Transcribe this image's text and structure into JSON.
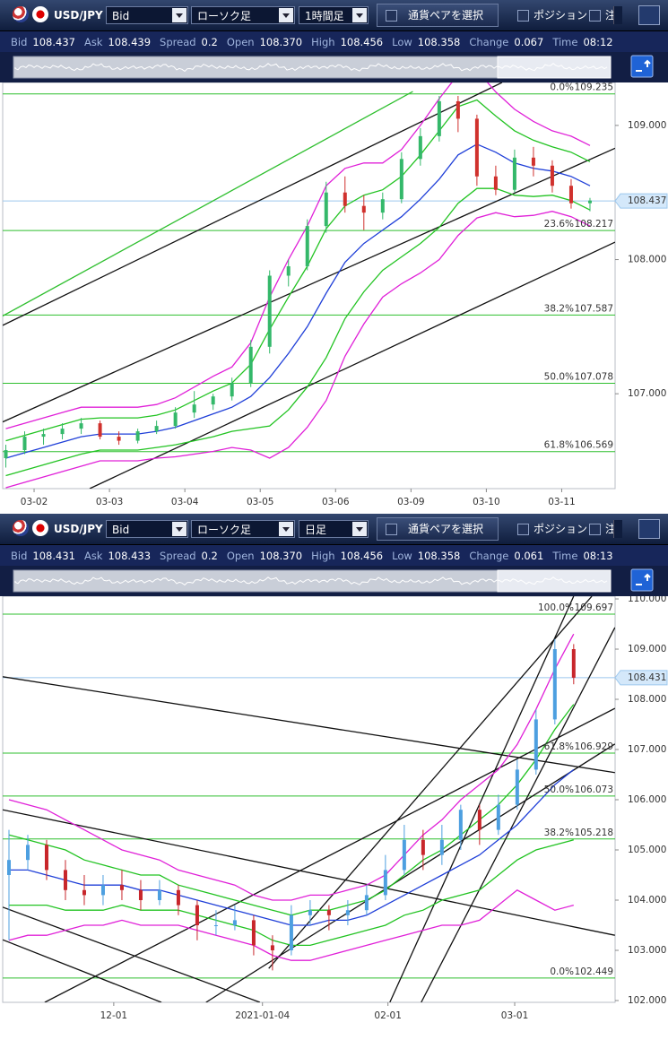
{
  "panels": [
    {
      "toolbar": {
        "pair": "USD/JPY",
        "price_type": "Bid",
        "chart_type": "ローソク足",
        "timeframe": "1時間足",
        "select_pair": "通貨ペアを選択",
        "position": "ポジション",
        "order": "注"
      },
      "quote": [
        {
          "label": "Bid",
          "value": "108.437"
        },
        {
          "label": "Ask",
          "value": "108.439"
        },
        {
          "label": "Spread",
          "value": "0.2"
        },
        {
          "label": "Open",
          "value": "108.370"
        },
        {
          "label": "High",
          "value": "108.456"
        },
        {
          "label": "Low",
          "value": "108.358"
        },
        {
          "label": "Change",
          "value": "0.067"
        },
        {
          "label": "Time",
          "value": "08:12"
        }
      ]
    },
    {
      "toolbar": {
        "pair": "USD/JPY",
        "price_type": "Bid",
        "chart_type": "ローソク足",
        "timeframe": "日足",
        "select_pair": "通貨ペアを選択",
        "position": "ポジション",
        "order": "注"
      },
      "quote": [
        {
          "label": "Bid",
          "value": "108.431"
        },
        {
          "label": "Ask",
          "value": "108.433"
        },
        {
          "label": "Spread",
          "value": "0.2"
        },
        {
          "label": "Open",
          "value": "108.370"
        },
        {
          "label": "High",
          "value": "108.456"
        },
        {
          "label": "Low",
          "value": "108.358"
        },
        {
          "label": "Change",
          "value": "0.061"
        },
        {
          "label": "Time",
          "value": "08:13"
        }
      ]
    }
  ],
  "chart_data": [
    {
      "type": "candlestick",
      "up_color": "#34b86a",
      "down_color": "#d0312d",
      "x": [
        1,
        7,
        13,
        19,
        25,
        31,
        37,
        43,
        49,
        55,
        61,
        67,
        73,
        79,
        85,
        91,
        97,
        103,
        109,
        115,
        121,
        127,
        133,
        139,
        145,
        151,
        157,
        163,
        169,
        175,
        181,
        187
      ],
      "open": [
        106.52,
        106.58,
        106.68,
        106.7,
        106.74,
        106.78,
        106.68,
        106.65,
        106.72,
        106.76,
        106.86,
        106.92,
        106.98,
        107.08,
        107.35,
        107.88,
        107.95,
        108.25,
        108.5,
        108.4,
        108.35,
        108.45,
        108.75,
        108.92,
        109.18,
        109.05,
        108.62,
        108.52,
        108.76,
        108.7,
        108.55,
        108.42
      ],
      "high": [
        106.62,
        106.72,
        106.74,
        106.78,
        106.82,
        106.8,
        106.72,
        106.74,
        106.8,
        106.9,
        107.02,
        107.0,
        107.12,
        107.4,
        107.92,
        108.0,
        108.3,
        108.58,
        108.62,
        108.48,
        108.5,
        108.8,
        108.98,
        109.22,
        109.22,
        109.08,
        108.7,
        108.82,
        108.84,
        108.74,
        108.6,
        108.46
      ],
      "low": [
        106.45,
        106.55,
        106.62,
        106.66,
        106.7,
        106.66,
        106.62,
        106.63,
        106.7,
        106.74,
        106.82,
        106.88,
        106.95,
        107.05,
        107.3,
        107.8,
        107.92,
        108.2,
        108.35,
        108.22,
        108.3,
        108.42,
        108.7,
        108.88,
        108.95,
        108.55,
        108.48,
        108.5,
        108.62,
        108.5,
        108.38,
        108.36
      ],
      "close": [
        106.58,
        106.68,
        106.7,
        106.74,
        106.78,
        106.68,
        106.65,
        106.72,
        106.76,
        106.86,
        106.92,
        106.98,
        107.08,
        107.35,
        107.88,
        107.95,
        108.25,
        108.5,
        108.4,
        108.35,
        108.45,
        108.75,
        108.92,
        109.18,
        109.05,
        108.62,
        108.52,
        108.76,
        108.7,
        108.55,
        108.42,
        108.44
      ],
      "series": [
        {
          "color": "#1f3fd8",
          "values": [
            106.52,
            106.56,
            106.6,
            106.64,
            106.68,
            106.7,
            106.7,
            106.7,
            106.72,
            106.75,
            106.8,
            106.85,
            106.9,
            106.98,
            107.12,
            107.3,
            107.5,
            107.75,
            107.98,
            108.12,
            108.22,
            108.32,
            108.45,
            108.6,
            108.78,
            108.86,
            108.8,
            108.72,
            108.68,
            108.66,
            108.62,
            108.55
          ]
        },
        {
          "color": "#e020d8",
          "values": [
            106.74,
            106.78,
            106.82,
            106.86,
            106.9,
            106.9,
            106.9,
            106.9,
            106.92,
            106.97,
            107.05,
            107.13,
            107.2,
            107.38,
            107.72,
            108.0,
            108.25,
            108.55,
            108.68,
            108.72,
            108.72,
            108.82,
            109.0,
            109.2,
            109.38,
            109.41,
            109.25,
            109.12,
            109.03,
            108.96,
            108.92,
            108.85
          ]
        },
        {
          "color": "#e020d8",
          "values": [
            106.3,
            106.34,
            106.38,
            106.42,
            106.46,
            106.5,
            106.5,
            106.5,
            106.52,
            106.53,
            106.55,
            106.57,
            106.6,
            106.58,
            106.52,
            106.6,
            106.75,
            106.95,
            107.28,
            107.52,
            107.72,
            107.82,
            107.9,
            108.0,
            108.18,
            108.31,
            108.35,
            108.32,
            108.33,
            108.36,
            108.32,
            108.25
          ]
        },
        {
          "color": "#22c322",
          "values": [
            106.65,
            106.69,
            106.73,
            106.77,
            106.81,
            106.82,
            106.82,
            106.82,
            106.84,
            106.88,
            106.95,
            107.02,
            107.08,
            107.22,
            107.48,
            107.72,
            107.95,
            108.23,
            108.4,
            108.48,
            108.52,
            108.62,
            108.78,
            108.96,
            109.14,
            109.19,
            109.07,
            108.96,
            108.89,
            108.84,
            108.8,
            108.73
          ]
        },
        {
          "color": "#22c322",
          "values": [
            106.39,
            106.43,
            106.47,
            106.51,
            106.55,
            106.58,
            106.58,
            106.58,
            106.6,
            106.62,
            106.65,
            106.68,
            106.72,
            106.74,
            106.76,
            106.88,
            107.05,
            107.27,
            107.56,
            107.76,
            107.92,
            108.02,
            108.12,
            108.24,
            108.42,
            108.53,
            108.53,
            108.48,
            108.47,
            108.48,
            108.44,
            108.37
          ]
        }
      ],
      "xlim": [
        0,
        195
      ],
      "xticks": [
        {
          "value": 10,
          "label": "03-02"
        },
        {
          "value": 34,
          "label": "03-03"
        },
        {
          "value": 58,
          "label": "03-04"
        },
        {
          "value": 82,
          "label": "03-05"
        },
        {
          "value": 106,
          "label": "03-06"
        },
        {
          "value": 130,
          "label": "03-09"
        },
        {
          "value": 154,
          "label": "03-10"
        },
        {
          "value": 178,
          "label": "03-11"
        }
      ],
      "ylim": [
        106.293,
        109.32
      ],
      "yticks": [
        {
          "value": 107,
          "label": "107.000"
        },
        {
          "value": 108,
          "label": "108.000"
        },
        {
          "value": 109,
          "label": "109.000"
        }
      ],
      "current_price": 108.437,
      "current_price_color": "#9cc8ee",
      "fib_color": "#2fbf2f",
      "fib_levels": [
        {
          "label": "0.0%",
          "value": 109.235
        },
        {
          "label": "23.6%",
          "value": 108.217
        },
        {
          "label": "38.2%",
          "value": 107.587
        },
        {
          "label": "50.0%",
          "value": 107.078
        },
        {
          "label": "61.8%",
          "value": 106.569
        }
      ],
      "trendlines": [
        {
          "color": "#2fbf2f",
          "points": [
            [
              0,
              107.58
            ],
            [
              130.6,
              109.253
            ]
          ]
        },
        {
          "color": "#111111",
          "points": [
            [
              0,
              107.51
            ],
            [
              159,
              109.32
            ]
          ]
        },
        {
          "color": "#111111",
          "points": [
            [
              0,
              106.79
            ],
            [
              195,
              108.83
            ]
          ]
        },
        {
          "color": "#111111",
          "points": [
            [
              27.7,
              106.293
            ],
            [
              195,
              108.13
            ]
          ]
        }
      ]
    },
    {
      "type": "candlestick",
      "up_color": "#4d9fe0",
      "down_color": "#c8262b",
      "x": [
        1,
        4,
        7,
        10,
        13,
        16,
        19,
        22,
        25,
        28,
        31,
        34,
        37,
        40,
        43,
        46,
        49,
        52,
        55,
        58,
        61,
        64,
        67,
        70,
        73,
        76,
        79,
        82,
        85,
        88,
        91
      ],
      "open": [
        104.5,
        104.8,
        105.1,
        104.6,
        104.2,
        104.1,
        104.3,
        104.2,
        104.0,
        104.2,
        103.9,
        103.5,
        103.5,
        103.6,
        103.1,
        103.0,
        103.7,
        103.8,
        103.7,
        103.8,
        104.1,
        104.6,
        105.2,
        104.9,
        105.2,
        105.8,
        105.4,
        105.9,
        106.6,
        107.6,
        109.0
      ],
      "high": [
        105.4,
        105.3,
        105.2,
        104.8,
        104.5,
        104.5,
        104.6,
        104.4,
        104.4,
        104.3,
        104.0,
        103.8,
        103.9,
        103.7,
        103.3,
        103.9,
        104.0,
        103.9,
        104.0,
        104.3,
        104.9,
        105.5,
        105.4,
        105.5,
        105.9,
        105.9,
        106.1,
        106.8,
        107.8,
        109.2,
        109.1
      ],
      "low": [
        103.2,
        104.6,
        104.4,
        104.0,
        103.9,
        103.9,
        104.0,
        103.8,
        103.9,
        103.7,
        103.2,
        103.3,
        103.4,
        102.9,
        102.6,
        102.9,
        103.5,
        103.4,
        103.5,
        103.7,
        104.0,
        104.5,
        104.6,
        104.7,
        105.0,
        105.1,
        105.3,
        105.8,
        106.5,
        107.5,
        108.3
      ],
      "close": [
        104.8,
        105.1,
        104.6,
        104.2,
        104.1,
        104.3,
        104.2,
        104.0,
        104.2,
        103.9,
        103.5,
        103.5,
        103.6,
        103.1,
        103.0,
        103.7,
        103.8,
        103.7,
        103.8,
        104.1,
        104.6,
        105.2,
        104.9,
        105.2,
        105.8,
        105.4,
        105.9,
        106.6,
        107.6,
        109.0,
        108.43
      ],
      "series": [
        {
          "color": "#1f3fd8",
          "values": [
            104.6,
            104.6,
            104.5,
            104.4,
            104.3,
            104.3,
            104.3,
            104.2,
            104.2,
            104.1,
            104.0,
            103.9,
            103.8,
            103.7,
            103.6,
            103.5,
            103.5,
            103.6,
            103.6,
            103.7,
            103.9,
            104.1,
            104.3,
            104.5,
            104.7,
            104.9,
            105.2,
            105.5,
            105.9,
            106.3,
            106.6
          ]
        },
        {
          "color": "#e020d8",
          "values": [
            106.0,
            105.9,
            105.8,
            105.6,
            105.4,
            105.2,
            105.0,
            104.9,
            104.8,
            104.6,
            104.5,
            104.4,
            104.3,
            104.1,
            104.0,
            104.0,
            104.1,
            104.1,
            104.2,
            104.3,
            104.5,
            104.9,
            105.3,
            105.6,
            106.0,
            106.3,
            106.6,
            107.1,
            107.8,
            108.6,
            109.3
          ]
        },
        {
          "color": "#e020d8",
          "values": [
            103.2,
            103.3,
            103.3,
            103.4,
            103.5,
            103.5,
            103.6,
            103.5,
            103.5,
            103.5,
            103.4,
            103.3,
            103.2,
            103.1,
            102.9,
            102.8,
            102.8,
            102.9,
            103.0,
            103.1,
            103.2,
            103.3,
            103.4,
            103.5,
            103.5,
            103.6,
            103.9,
            104.2,
            104.0,
            103.8,
            103.9
          ]
        },
        {
          "color": "#22c322",
          "values": [
            105.3,
            105.2,
            105.1,
            105.0,
            104.8,
            104.7,
            104.6,
            104.5,
            104.5,
            104.3,
            104.2,
            104.1,
            104.0,
            103.9,
            103.8,
            103.7,
            103.8,
            103.8,
            103.9,
            104.0,
            104.2,
            104.5,
            104.8,
            105.0,
            105.3,
            105.6,
            105.9,
            106.3,
            106.8,
            107.4,
            107.9
          ]
        },
        {
          "color": "#22c322",
          "values": [
            103.9,
            103.9,
            103.9,
            103.8,
            103.8,
            103.8,
            103.9,
            103.8,
            103.8,
            103.8,
            103.7,
            103.6,
            103.5,
            103.4,
            103.2,
            103.1,
            103.1,
            103.2,
            103.3,
            103.4,
            103.5,
            103.7,
            103.8,
            104.0,
            104.1,
            104.2,
            104.5,
            104.8,
            105.0,
            105.1,
            105.2
          ]
        }
      ],
      "xlim": [
        0,
        97.6
      ],
      "xticks": [
        {
          "value": 17.7,
          "label": "12-01"
        },
        {
          "value": 41.4,
          "label": "2021-01-04"
        },
        {
          "value": 61.4,
          "label": "02-01"
        },
        {
          "value": 81.6,
          "label": "03-01"
        }
      ],
      "ylim": [
        101.964,
        110.054
      ],
      "yticks": [
        {
          "value": 102,
          "label": "102.000"
        },
        {
          "value": 103,
          "label": "103.000"
        },
        {
          "value": 104,
          "label": "104.000"
        },
        {
          "value": 105,
          "label": "105.000"
        },
        {
          "value": 106,
          "label": "106.000"
        },
        {
          "value": 107,
          "label": "107.000"
        },
        {
          "value": 108,
          "label": "108.000"
        },
        {
          "value": 109,
          "label": "109.000"
        },
        {
          "value": 110,
          "label": "110.000"
        }
      ],
      "current_price": 108.431,
      "current_price_color": "#9cc8ee",
      "fib_color": "#2fbf2f",
      "fib_levels": [
        {
          "label": "100.0%",
          "value": 109.697
        },
        {
          "label": "61.8%",
          "value": 106.929
        },
        {
          "label": "50.0%",
          "value": 106.073
        },
        {
          "label": "38.2%",
          "value": 105.218
        },
        {
          "label": "0.0%",
          "value": 102.449
        }
      ],
      "trendlines": [
        {
          "color": "#111111",
          "points": [
            [
              0,
              108.45
            ],
            [
              97.57,
              106.54
            ]
          ]
        },
        {
          "color": "#111111",
          "points": [
            [
              0,
              105.8
            ],
            [
              97.57,
              103.3
            ]
          ]
        },
        {
          "color": "#111111",
          "points": [
            [
              0,
              103.86
            ],
            [
              41,
              101.964
            ]
          ]
        },
        {
          "color": "#111111",
          "points": [
            [
              0,
              103.21
            ],
            [
              25.3,
              101.964
            ]
          ]
        },
        {
          "color": "#111111",
          "points": [
            [
              6.7,
              101.964
            ],
            [
              97.57,
              107.82
            ]
          ]
        },
        {
          "color": "#111111",
          "points": [
            [
              32.4,
              101.964
            ],
            [
              97.57,
              107.11
            ]
          ]
        },
        {
          "color": "#111111",
          "points": [
            [
              42.4,
              102.64
            ],
            [
              93.9,
              110.054
            ]
          ]
        },
        {
          "color": "#111111",
          "points": [
            [
              61.7,
              101.964
            ],
            [
              91,
              110.054
            ]
          ]
        },
        {
          "color": "#111111",
          "points": [
            [
              66.7,
              101.964
            ],
            [
              97.57,
              109.43
            ]
          ]
        }
      ]
    }
  ]
}
